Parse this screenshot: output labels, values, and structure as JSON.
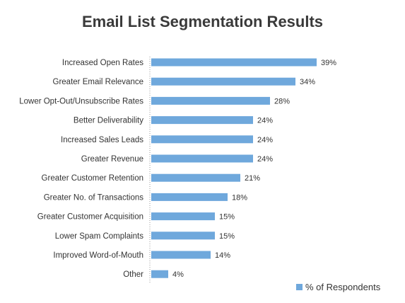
{
  "chart_data": {
    "type": "bar",
    "orientation": "horizontal",
    "title": "Email List Segmentation Results",
    "xlabel": "",
    "ylabel": "",
    "categories": [
      "Increased Open Rates",
      "Greater Email Relevance",
      "Lower Opt-Out/Unsubscribe Rates",
      "Better Deliverability",
      "Increased Sales Leads",
      "Greater Revenue",
      "Greater Customer Retention",
      "Greater No. of Transactions",
      "Greater Customer Acquisition",
      "Lower Spam Complaints",
      "Improved Word-of-Mouth",
      "Other"
    ],
    "series": [
      {
        "name": "% of Respondents",
        "values": [
          39,
          34,
          28,
          24,
          24,
          24,
          21,
          18,
          15,
          15,
          14,
          4
        ],
        "labels": [
          "39%",
          "34%",
          "28%",
          "24%",
          "24%",
          "24%",
          "21%",
          "18%",
          "15%",
          "15%",
          "14%",
          "4%"
        ],
        "color": "#6fa8dc"
      }
    ],
    "xlim": [
      0,
      40
    ],
    "grid": false,
    "legend_position": "bottom-right",
    "axis_color": "#999999"
  }
}
